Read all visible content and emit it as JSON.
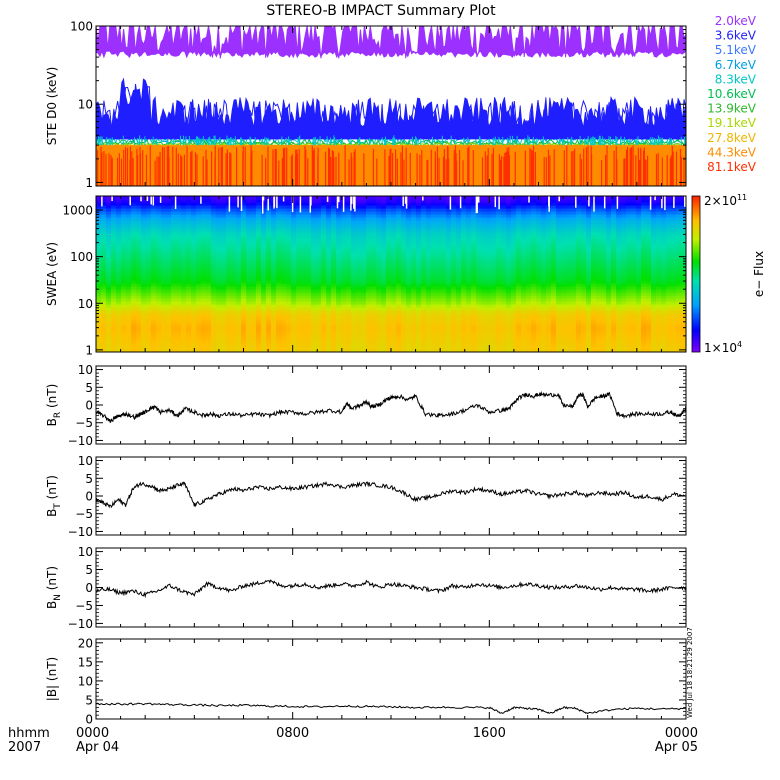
{
  "title": "STEREO-B IMPACT Summary Plot",
  "colors": {
    "axis": "#000000",
    "trace": "#000000"
  },
  "time_axis": {
    "row1_label": "hhmm",
    "row2_label": "2007",
    "ticks": [
      {
        "hour": 0,
        "label": "0000",
        "sublabel": "Apr 04"
      },
      {
        "hour": 8,
        "label": "0800",
        "sublabel": ""
      },
      {
        "hour": 16,
        "label": "1600",
        "sublabel": ""
      },
      {
        "hour": 24,
        "label": "0000",
        "sublabel": "Apr 05"
      }
    ]
  },
  "side_note": "Wed Jul 18 18:21:29 2007",
  "chart_data": [
    {
      "id": "ste",
      "type": "line",
      "ylabel": "STE D0 (keV)",
      "y_scale": "log",
      "ylim": [
        0.9,
        100
      ],
      "yticks": [
        {
          "v": 1,
          "l": "1"
        },
        {
          "v": 10,
          "l": "10"
        },
        {
          "v": 100,
          "l": "100"
        }
      ],
      "legend_position": "right",
      "series": [
        {
          "name": "2.0keV",
          "color": "#9B30FF",
          "base": 60,
          "spread": 0.25,
          "min": 30,
          "max": 100
        },
        {
          "name": "3.6keV",
          "color": "#1E1EFF",
          "base": 5,
          "spread": 0.2,
          "min": 3.5,
          "max": 22
        },
        {
          "name": "5.1keV",
          "color": "#3C78FF",
          "base": 4,
          "spread": 0.08,
          "min": 3.5,
          "max": 10
        },
        {
          "name": "6.7keV",
          "color": "#00A0E0",
          "base": 3.6,
          "spread": 0.05,
          "min": 3.0,
          "max": 6
        },
        {
          "name": "8.3keV",
          "color": "#00C8C8",
          "base": 3.3,
          "spread": 0.04,
          "min": 3.0,
          "max": 5
        },
        {
          "name": "10.6keV",
          "color": "#00C050",
          "base": 3.1,
          "spread": 0.03,
          "min": 2.9,
          "max": 5
        },
        {
          "name": "13.9keV",
          "color": "#2DB82D",
          "base": 3.0,
          "spread": 0.02,
          "min": 2.9,
          "max": 5
        },
        {
          "name": "19.1keV",
          "color": "#A8D800",
          "base": 3.0,
          "spread": 0.01,
          "min": 2.9,
          "max": 4
        },
        {
          "name": "27.8keV",
          "color": "#F0B400",
          "base": 2.9,
          "spread": 0.01,
          "min": 2.8,
          "max": 3
        },
        {
          "name": "44.3keV",
          "color": "#FF8C00",
          "base": 2.9,
          "spread": 0.0,
          "min": 2.9,
          "max": 2.9
        },
        {
          "name": "81.1keV",
          "color": "#FF3000",
          "base": 1.9,
          "spread": 0.0,
          "min": 1.0,
          "max": 1.9
        }
      ]
    },
    {
      "id": "swea",
      "type": "heatmap",
      "ylabel": "SWEA (eV)",
      "y_scale": "log",
      "ylim": [
        0.9,
        2000
      ],
      "yticks": [
        {
          "v": 1,
          "l": "1"
        },
        {
          "v": 10,
          "l": "10"
        },
        {
          "v": 100,
          "l": "100"
        },
        {
          "v": 1000,
          "l": "1000"
        }
      ],
      "colorbar": {
        "label": "e− Flux",
        "max_mantissa": "2×10",
        "max_exp": "11",
        "min_mantissa": "1×10",
        "min_exp": "4"
      },
      "spectrum": [
        {
          "e": 1,
          "c": 0.8
        },
        {
          "e": 3,
          "c": 0.83
        },
        {
          "e": 6,
          "c": 0.8
        },
        {
          "e": 10,
          "c": 0.7
        },
        {
          "e": 30,
          "c": 0.55
        },
        {
          "e": 100,
          "c": 0.48
        },
        {
          "e": 300,
          "c": 0.42
        },
        {
          "e": 600,
          "c": 0.33
        },
        {
          "e": 1000,
          "c": 0.22
        },
        {
          "e": 1500,
          "c": 0.1
        },
        {
          "e": 2000,
          "c": 0.06
        }
      ]
    },
    {
      "id": "br",
      "type": "line",
      "ylabel_main": "B",
      "ylabel_sub": "R",
      "ylabel_unit": " (nT)",
      "ylim": [
        -11,
        11
      ],
      "yticks": [
        {
          "v": -10,
          "l": "−10"
        },
        {
          "v": -5,
          "l": "−5"
        },
        {
          "v": 0,
          "l": "0"
        },
        {
          "v": 5,
          "l": "5"
        },
        {
          "v": 10,
          "l": "10"
        }
      ],
      "x": [
        0,
        0.3,
        0.6,
        0.8,
        1.0,
        1.2,
        1.6,
        1.8,
        2.0,
        2.2,
        2.4,
        2.6,
        3.0,
        3.3,
        3.5,
        3.6,
        4.0,
        4.4,
        4.6,
        5.0,
        5.5,
        6.0,
        6.5,
        7.0,
        7.5,
        8.0,
        8.5,
        9.0,
        9.5,
        10.0,
        10.2,
        10.4,
        10.8,
        11.0,
        11.2,
        11.5,
        11.8,
        12.0,
        12.3,
        12.7,
        13.0,
        13.4,
        13.9,
        14.0,
        14.5,
        15.0,
        15.5,
        16.0,
        16.5,
        16.8,
        17.0,
        17.2,
        17.5,
        17.8,
        18.0,
        18.4,
        18.8,
        19.0,
        19.4,
        19.6,
        19.8,
        20.0,
        20.3,
        20.6,
        20.9,
        21.2,
        21.5,
        22.0,
        22.5,
        23.0,
        23.4,
        23.6,
        23.8,
        24.0
      ],
      "values": [
        -2,
        -3,
        -4.5,
        -3.5,
        -3,
        -2.5,
        -3.5,
        -2.5,
        -2,
        -1,
        -0.5,
        -2,
        -1.5,
        -3,
        -2,
        -1,
        -2,
        -3,
        -2.5,
        -3,
        -2.5,
        -3,
        -2.5,
        -3,
        -2,
        -2,
        -2.5,
        -2,
        -1.5,
        -2,
        0.5,
        -1,
        0,
        1,
        -0.5,
        0,
        1.5,
        2,
        2.5,
        1.5,
        2.5,
        -2.5,
        -3,
        -2.8,
        -2.5,
        -1.5,
        0,
        -2,
        -1.5,
        -1,
        0.5,
        2,
        3,
        2.5,
        3,
        2.8,
        3,
        0,
        -0.5,
        2.5,
        3,
        -0.5,
        2,
        2.5,
        3,
        -2.5,
        -3,
        -2.5,
        -2.5,
        -2.5,
        -2,
        -3,
        -2.5,
        -1
      ]
    },
    {
      "id": "bt",
      "type": "line",
      "ylabel_main": "B",
      "ylabel_sub": "T",
      "ylabel_unit": " (nT)",
      "ylim": [
        -11,
        11
      ],
      "yticks": [
        {
          "v": -10,
          "l": "−10"
        },
        {
          "v": -5,
          "l": "−5"
        },
        {
          "v": 0,
          "l": "0"
        },
        {
          "v": 5,
          "l": "5"
        },
        {
          "v": 10,
          "l": "10"
        }
      ],
      "x": [
        0,
        0.3,
        0.6,
        0.9,
        1.2,
        1.5,
        1.8,
        2.2,
        2.6,
        3.0,
        3.3,
        3.6,
        4.0,
        4.4,
        4.8,
        5.2,
        5.6,
        6.0,
        6.5,
        7.0,
        7.5,
        8.0,
        8.5,
        9.0,
        9.5,
        10.0,
        10.5,
        11.0,
        11.5,
        12.0,
        12.5,
        13.0,
        13.5,
        14.0,
        14.5,
        15.0,
        15.5,
        16.0,
        16.5,
        17.0,
        17.5,
        18.0,
        18.5,
        19.0,
        19.5,
        20.0,
        20.5,
        21.0,
        21.5,
        22.0,
        22.5,
        23.0,
        23.5,
        24.0
      ],
      "values": [
        -1,
        -2,
        -3,
        -1,
        -2.5,
        2,
        3.5,
        3,
        1.5,
        2,
        3,
        3.5,
        -2.5,
        -1.5,
        0,
        1,
        2,
        1.5,
        2.5,
        2,
        2.5,
        2,
        2.5,
        3,
        3.5,
        2.5,
        3,
        3.5,
        3,
        2.5,
        1,
        -1,
        -0.5,
        0.5,
        1.5,
        1,
        2,
        1.5,
        0.5,
        1,
        1.5,
        0.5,
        0,
        0.5,
        1,
        0,
        1,
        0.5,
        1,
        -0.5,
        0,
        -1,
        0.5,
        0
      ]
    },
    {
      "id": "bn",
      "type": "line",
      "ylabel_main": "B",
      "ylabel_sub": "N",
      "ylabel_unit": " (nT)",
      "ylim": [
        -11,
        11
      ],
      "yticks": [
        {
          "v": -10,
          "l": "−10"
        },
        {
          "v": -5,
          "l": "−5"
        },
        {
          "v": 0,
          "l": "0"
        },
        {
          "v": 5,
          "l": "5"
        },
        {
          "v": 10,
          "l": "10"
        }
      ],
      "x": [
        0,
        0.5,
        1.0,
        1.5,
        2.0,
        2.5,
        3.0,
        3.5,
        4.0,
        4.5,
        5.0,
        5.5,
        6.0,
        6.5,
        7.0,
        7.5,
        8.0,
        8.5,
        9.0,
        9.5,
        10.0,
        10.5,
        11.0,
        11.5,
        12.0,
        12.5,
        13.0,
        13.5,
        14.0,
        14.5,
        15.0,
        15.5,
        16.0,
        16.5,
        17.0,
        17.5,
        18.0,
        18.5,
        19.0,
        19.5,
        20.0,
        20.5,
        21.0,
        21.5,
        22.0,
        22.5,
        23.0,
        23.5,
        24.0
      ],
      "values": [
        -1,
        -0.5,
        -1.5,
        -1,
        -2,
        -1,
        0.5,
        -1,
        -2,
        1,
        0,
        -1,
        0.5,
        1,
        2,
        0.5,
        0.5,
        1,
        0,
        0.5,
        1,
        0.5,
        1.5,
        0,
        1,
        0.5,
        0,
        -0.5,
        -1,
        0.5,
        0,
        1,
        0.5,
        0,
        0.5,
        1,
        0.5,
        0,
        0,
        0.5,
        0,
        -0.5,
        0,
        -0.5,
        -0.5,
        -1,
        -0.5,
        0,
        0
      ]
    },
    {
      "id": "bmag",
      "type": "line",
      "ylabel_main": "|B|",
      "ylabel_sub": "",
      "ylabel_unit": " (nT)",
      "ylim": [
        0,
        21
      ],
      "yticks": [
        {
          "v": 0,
          "l": "0"
        },
        {
          "v": 5,
          "l": "5"
        },
        {
          "v": 10,
          "l": "10"
        },
        {
          "v": 15,
          "l": "15"
        },
        {
          "v": 20,
          "l": "20"
        }
      ],
      "x": [
        0,
        1,
        2,
        3,
        4,
        5,
        6,
        7,
        8,
        9,
        10,
        11,
        12,
        13,
        14,
        15,
        16,
        16.5,
        17,
        17.5,
        18,
        18.5,
        19,
        19.5,
        20,
        21,
        22,
        23,
        24
      ],
      "values": [
        4,
        3.9,
        4,
        3.8,
        3.7,
        3.5,
        3.6,
        3.4,
        3.3,
        3.2,
        3.4,
        3.3,
        3.2,
        3.0,
        3.1,
        3.0,
        3.0,
        1.5,
        3.0,
        2.8,
        2.5,
        1.5,
        3.0,
        2.8,
        1.5,
        2.5,
        2.8,
        2.6,
        2.8
      ]
    }
  ]
}
